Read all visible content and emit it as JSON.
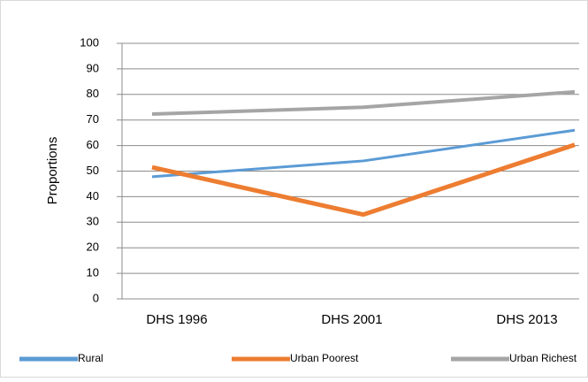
{
  "chart_data": {
    "type": "line",
    "y_label": "Proportions",
    "categories": [
      "DHS 1996",
      "DHS 2001",
      "DHS 2013"
    ],
    "series": [
      {
        "name": "Rural",
        "color": "#5b9bd5",
        "width": 3,
        "values": [
          47.8,
          54,
          66
        ]
      },
      {
        "name": "Urban Poorest",
        "color": "#ed7d31",
        "width": 5,
        "values": [
          51.5,
          33,
          60.3
        ]
      },
      {
        "name": "Urban Richest",
        "color": "#a5a5a5",
        "width": 4,
        "values": [
          72.3,
          75,
          81
        ]
      }
    ],
    "ylim": [
      0,
      100
    ],
    "yticks": [
      0,
      10,
      20,
      30,
      40,
      50,
      60,
      70,
      80,
      90,
      100
    ],
    "grid": true
  }
}
